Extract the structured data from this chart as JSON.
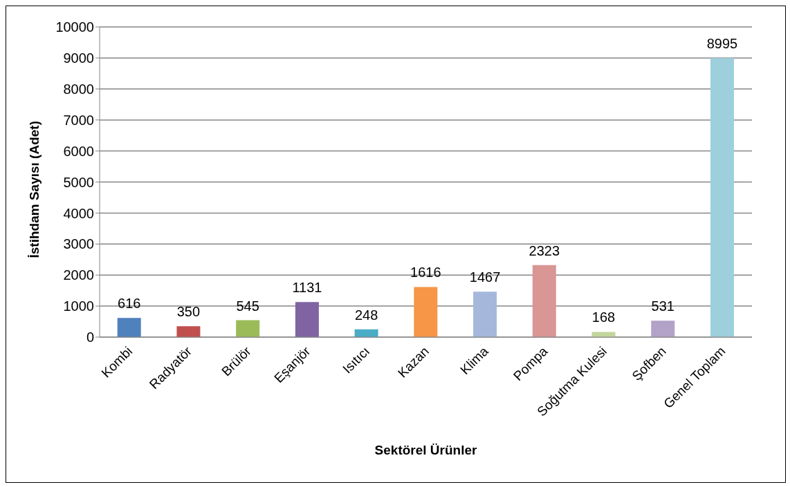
{
  "chart_data": {
    "type": "bar",
    "xlabel": "Sektörel Ürünler",
    "ylabel": "İstihdam Sayısı (Adet)",
    "categories": [
      "Kombi",
      "Radyatör",
      "Brülör",
      "Eşanjör",
      "Isıtıcı",
      "Kazan",
      "Klima",
      "Pompa",
      "Soğutma Kulesi",
      "Şofben",
      "Genel Toplam"
    ],
    "values": [
      616,
      350,
      545,
      1131,
      248,
      1616,
      1467,
      2323,
      168,
      531,
      8995
    ],
    "colors": [
      "#4f81bd",
      "#c0504d",
      "#9bbb59",
      "#8064a2",
      "#4bacc6",
      "#f79646",
      "#a5b8dc",
      "#d99694",
      "#c3d69b",
      "#b3a2c7",
      "#9dcfdc"
    ],
    "ylim": [
      0,
      10000
    ],
    "yticks": [
      0,
      1000,
      2000,
      3000,
      4000,
      5000,
      6000,
      7000,
      8000,
      9000,
      10000
    ],
    "grid": "y",
    "legend": false,
    "data_labels": true
  }
}
